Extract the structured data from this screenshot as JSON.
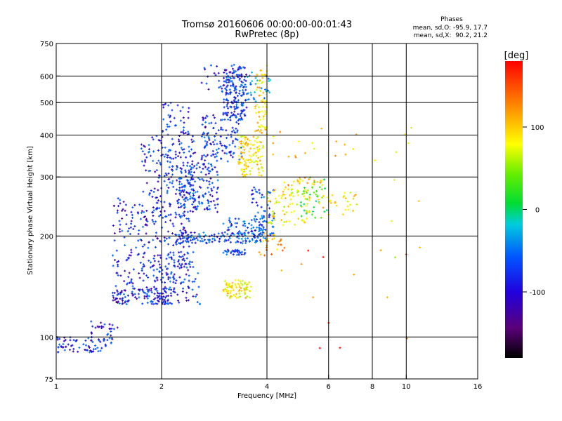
{
  "header": {
    "title_line1": "Tromsø 20160606 00:00:00-00:01:43",
    "title_line2": "RwPretec (8p)",
    "stats_title": "Phases",
    "stats_o": "mean, sd,O: -95.9, 17.7",
    "stats_x": "mean, sd,X:  90.2, 21.2"
  },
  "colorbar": {
    "unit_label": "[deg]",
    "ticks": [
      {
        "value": 100,
        "label": "100"
      },
      {
        "value": 0,
        "label": "0"
      },
      {
        "value": -100,
        "label": "-100"
      }
    ],
    "range": [
      -180,
      180
    ]
  },
  "chart_data": {
    "type": "scatter",
    "title": "Tromsø 20160606 00:00:00-00:01:43",
    "subtitle": "RwPretec (8p)",
    "xlabel": "Frequency [MHz]",
    "ylabel": "Stationary phase Virtual Height [km]",
    "xscale": "log",
    "yscale": "log",
    "xlim": [
      1,
      16
    ],
    "ylim": [
      75,
      750
    ],
    "x_ticks": [
      {
        "value": 1,
        "label": "1"
      },
      {
        "value": 2,
        "label": "2"
      },
      {
        "value": 4,
        "label": "4"
      },
      {
        "value": 6,
        "label": "6"
      },
      {
        "value": 8,
        "label": "8"
      },
      {
        "value": 10,
        "label": "10"
      },
      {
        "value": 16,
        "label": "16"
      }
    ],
    "y_ticks": [
      {
        "value": 75,
        "label": "75"
      },
      {
        "value": 100,
        "label": "100"
      },
      {
        "value": 200,
        "label": "200"
      },
      {
        "value": 300,
        "label": "300"
      },
      {
        "value": 400,
        "label": "400"
      },
      {
        "value": 500,
        "label": "500"
      },
      {
        "value": 600,
        "label": "600"
      },
      {
        "value": 750,
        "label": "750"
      }
    ],
    "grid_x": [
      2,
      4,
      6,
      8,
      10
    ],
    "grid_y": [
      100,
      200,
      300,
      400,
      500,
      600
    ],
    "grid": true,
    "color_encoding": "phase (deg)",
    "clusters": [
      {
        "x": [
          1.0,
          1.45
        ],
        "y": [
          90,
          100
        ],
        "phase": -105,
        "density": 70
      },
      {
        "x": [
          1.25,
          1.5
        ],
        "y": [
          95,
          112
        ],
        "phase": -110,
        "density": 30
      },
      {
        "x": [
          1.45,
          2.1
        ],
        "y": [
          125,
          140
        ],
        "phase": -110,
        "density": 110
      },
      {
        "x": [
          1.45,
          2.4
        ],
        "y": [
          140,
          260
        ],
        "phase": -110,
        "density": 230
      },
      {
        "x": [
          1.9,
          2.6
        ],
        "y": [
          125,
          180
        ],
        "phase": -105,
        "density": 120
      },
      {
        "x": [
          1.75,
          2.5
        ],
        "y": [
          220,
          400
        ],
        "phase": -105,
        "density": 200
      },
      {
        "x": [
          2.0,
          2.4
        ],
        "y": [
          400,
          500
        ],
        "phase": -110,
        "density": 40
      },
      {
        "x": [
          2.25,
          2.9
        ],
        "y": [
          235,
          330
        ],
        "phase": -100,
        "density": 150
      },
      {
        "x": [
          2.6,
          3.4
        ],
        "y": [
          330,
          460
        ],
        "phase": -100,
        "density": 130
      },
      {
        "x": [
          3.0,
          3.5
        ],
        "y": [
          450,
          640
        ],
        "phase": -105,
        "density": 160
      },
      {
        "x": [
          2.6,
          3.3
        ],
        "y": [
          525,
          650
        ],
        "phase": -110,
        "density": 35
      },
      {
        "x": [
          3.3,
          3.9
        ],
        "y": [
          300,
          400
        ],
        "phase": 95,
        "density": 110
      },
      {
        "x": [
          3.7,
          4.0
        ],
        "y": [
          400,
          650
        ],
        "phase": 105,
        "density": 70
      },
      {
        "x": [
          3.5,
          4.1
        ],
        "y": [
          500,
          620
        ],
        "phase": -60,
        "density": 30
      },
      {
        "x": [
          2.2,
          4.0
        ],
        "y": [
          190,
          205
        ],
        "phase": -90,
        "density": 140
      },
      {
        "x": [
          3.0,
          4.2
        ],
        "y": [
          200,
          230
        ],
        "phase": -80,
        "density": 60
      },
      {
        "x": [
          3.0,
          3.5
        ],
        "y": [
          175,
          182
        ],
        "phase": -100,
        "density": 30
      },
      {
        "x": [
          3.0,
          3.6
        ],
        "y": [
          130,
          148
        ],
        "phase": 95,
        "density": 80
      },
      {
        "x": [
          3.6,
          4.2
        ],
        "y": [
          200,
          280
        ],
        "phase": -95,
        "density": 60
      },
      {
        "x": [
          3.8,
          4.5
        ],
        "y": [
          175,
          205
        ],
        "phase": 120,
        "density": 25
      },
      {
        "x": [
          4.0,
          5.4
        ],
        "y": [
          215,
          275
        ],
        "phase": 90,
        "density": 80
      },
      {
        "x": [
          4.4,
          5.8
        ],
        "y": [
          275,
          300
        ],
        "phase": 110,
        "density": 30
      },
      {
        "x": [
          5.0,
          6.0
        ],
        "y": [
          225,
          300
        ],
        "phase": 10,
        "density": 35
      },
      {
        "x": [
          5.6,
          7.3
        ],
        "y": [
          230,
          270
        ],
        "phase": 100,
        "density": 30
      },
      {
        "x": [
          4.1,
          7.2
        ],
        "y": [
          340,
          420
        ],
        "phase": 110,
        "density": 18
      },
      {
        "x": [
          4.0,
          10.5
        ],
        "y": [
          90,
          200
        ],
        "phase": 150,
        "density": 14
      },
      {
        "x": [
          8.0,
          12.8
        ],
        "y": [
          150,
          480
        ],
        "phase": 80,
        "density": 10
      }
    ]
  }
}
